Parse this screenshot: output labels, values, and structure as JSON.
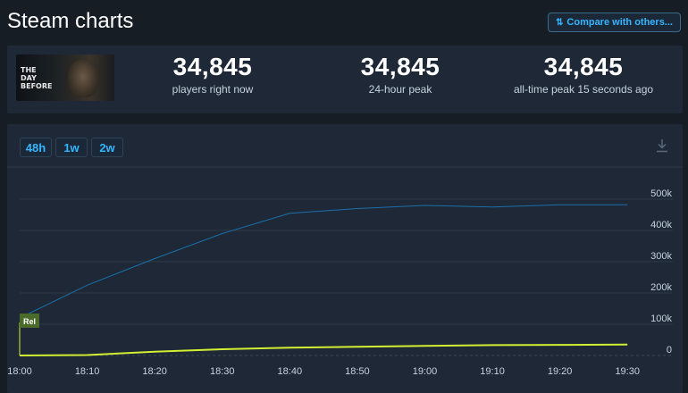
{
  "header": {
    "title": "Steam charts",
    "compare_label": "Compare with others..."
  },
  "game": {
    "logo_text": "THE DAY BEFORE"
  },
  "stats": [
    {
      "value": "34,845",
      "label": "players right now"
    },
    {
      "value": "34,845",
      "label": "24-hour peak"
    },
    {
      "value": "34,845",
      "label": "all-time peak 15 seconds ago"
    }
  ],
  "range_buttons": [
    "48h",
    "1w",
    "2w"
  ],
  "release_marker": "Rel",
  "colors": {
    "background": "#171d25",
    "panel": "#1e2836",
    "accent": "#35b5ff",
    "followers_line": "#1a6fa8",
    "players_line": "#d2ef32",
    "release_marker": "#4a6b2a"
  },
  "chart_data": {
    "type": "line",
    "x_ticks": [
      "18:00",
      "18:10",
      "18:20",
      "18:30",
      "18:40",
      "18:50",
      "19:00",
      "19:10",
      "19:20",
      "19:30"
    ],
    "y_ticks": [
      "0",
      "100k",
      "200k",
      "300k",
      "400k",
      "500k"
    ],
    "ylim": [
      0,
      500000
    ],
    "grid": true,
    "series": [
      {
        "color": "#1a6fa8",
        "points": [
          [
            0,
            120000
          ],
          [
            10,
            225000
          ],
          [
            20,
            310000
          ],
          [
            30,
            390000
          ],
          [
            40,
            455000
          ],
          [
            50,
            470000
          ],
          [
            60,
            480000
          ],
          [
            70,
            475000
          ],
          [
            80,
            482000
          ],
          [
            90,
            482000
          ]
        ]
      },
      {
        "color": "#d2ef32",
        "points": [
          [
            0,
            0
          ],
          [
            10,
            1500
          ],
          [
            20,
            12000
          ],
          [
            30,
            20000
          ],
          [
            40,
            25000
          ],
          [
            50,
            28000
          ],
          [
            60,
            31000
          ],
          [
            70,
            33000
          ],
          [
            80,
            34000
          ],
          [
            90,
            34845
          ]
        ]
      }
    ]
  }
}
